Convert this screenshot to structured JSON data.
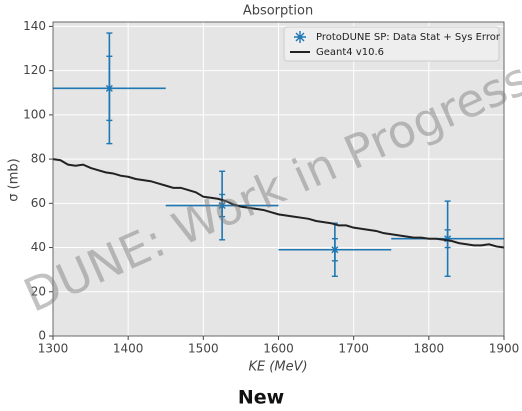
{
  "chart_data": {
    "type": "errorbar",
    "title": "Absorption",
    "xlabel": "KE (MeV)",
    "ylabel": "σ (mb)",
    "watermark": "DUNE: Work in Progress",
    "caption": "New",
    "xlim": [
      1300,
      1900
    ],
    "xticks": [
      1300,
      1400,
      1500,
      1600,
      1700,
      1800,
      1900
    ],
    "ylim": [
      0,
      142
    ],
    "yticks": [
      0,
      20,
      40,
      60,
      80,
      100,
      120,
      140
    ],
    "grid": true,
    "legend": "upper right",
    "series": [
      {
        "name": "ProtoDUNE SP: Data Stat + Sys Error",
        "color": "#1f77b4",
        "x": [
          1375,
          1525,
          1675,
          1825
        ],
        "values": [
          112,
          59,
          39,
          44
        ],
        "xerr": [
          75,
          75,
          75,
          75
        ],
        "yerr_stat": [
          14.5,
          5,
          5,
          4
        ],
        "yerr_total": [
          25,
          15.5,
          12,
          17
        ]
      },
      {
        "name": "Geant4 v10.6",
        "color": "#222222",
        "type": "line",
        "x": [
          1300,
          1310,
          1320,
          1330,
          1340,
          1350,
          1360,
          1370,
          1380,
          1390,
          1400,
          1410,
          1420,
          1430,
          1440,
          1450,
          1460,
          1470,
          1480,
          1490,
          1500,
          1510,
          1520,
          1530,
          1540,
          1550,
          1560,
          1570,
          1580,
          1590,
          1600,
          1610,
          1620,
          1630,
          1640,
          1650,
          1660,
          1670,
          1680,
          1690,
          1700,
          1710,
          1720,
          1730,
          1740,
          1750,
          1760,
          1770,
          1780,
          1790,
          1800,
          1810,
          1820,
          1830,
          1840,
          1850,
          1860,
          1870,
          1880,
          1890,
          1900
        ],
        "values": [
          80,
          79.5,
          77.5,
          77,
          77.5,
          76,
          75,
          74,
          73.5,
          72.5,
          72,
          71,
          70.5,
          70,
          69,
          68,
          67,
          67,
          66,
          65,
          63,
          62.5,
          62,
          61,
          59.5,
          58.5,
          58,
          57.5,
          57,
          56,
          55,
          54.5,
          54,
          53.5,
          53,
          52,
          51.5,
          51,
          50,
          50,
          49,
          48.5,
          48,
          47.5,
          46.5,
          46,
          45.5,
          45,
          44.5,
          44.5,
          44,
          44,
          43.5,
          43,
          42,
          41.5,
          41,
          41,
          41.5,
          40.5,
          40
        ]
      }
    ]
  }
}
